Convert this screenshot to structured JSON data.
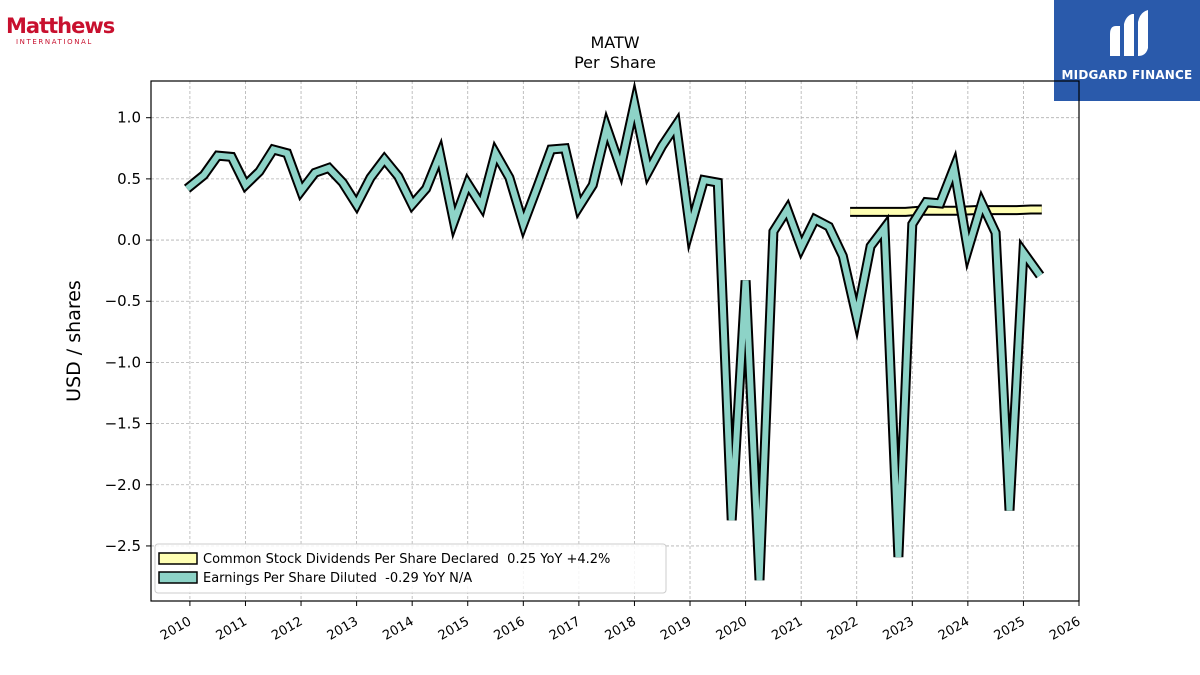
{
  "logos": {
    "left_brand": "Matthews",
    "left_sub": "INTERNATIONAL",
    "right_text": "MIDGARD FINANCE"
  },
  "colors": {
    "brand_red": "#c8102e",
    "brand_blue": "#2a5aab",
    "eps": "#8dd3c7",
    "dividend": "#ffffb3",
    "outline": "#000000",
    "grid": "#b0b0b0"
  },
  "chart_data": {
    "type": "line",
    "title": "MATW",
    "subtitle": "Per  Share",
    "ylabel": "USD / shares",
    "xlabel": "",
    "xlim": [
      2009.3,
      2026.0
    ],
    "ylim": [
      -2.95,
      1.3
    ],
    "grid": true,
    "legend_position": "bottom-left",
    "x_ticks": [
      2010,
      2011,
      2012,
      2013,
      2014,
      2015,
      2016,
      2017,
      2018,
      2019,
      2020,
      2021,
      2022,
      2023,
      2024,
      2025,
      2026
    ],
    "y_ticks": [
      1.0,
      0.5,
      0.0,
      -0.5,
      -1.0,
      -1.5,
      -2.0,
      -2.5
    ],
    "y_tick_labels": [
      "1.0",
      "0.5",
      "0.0",
      "−0.5",
      "−1.0",
      "−1.5",
      "−2.0",
      "−2.5"
    ],
    "series": [
      {
        "name": "Common Stock Dividends Per Share Declared",
        "legend_label": "Common Stock Dividends Per Share Declared  0.25 YoY +4.2%",
        "color": "#ffffb3",
        "x": [
          2021.88,
          2022.13,
          2022.38,
          2022.63,
          2022.88,
          2023.13,
          2023.38,
          2023.63,
          2023.88,
          2024.13,
          2024.38,
          2024.63,
          2024.88,
          2025.13,
          2025.33
        ],
        "y": [
          0.23,
          0.23,
          0.23,
          0.23,
          0.23,
          0.24,
          0.24,
          0.24,
          0.24,
          0.245,
          0.245,
          0.245,
          0.245,
          0.25,
          0.25
        ]
      },
      {
        "name": "Earnings Per Share Diluted",
        "legend_label": "Earnings Per Share Diluted  -0.29 YoY N/A",
        "color": "#8dd3c7",
        "x": [
          2009.95,
          2010.25,
          2010.5,
          2010.75,
          2011.0,
          2011.25,
          2011.5,
          2011.75,
          2012.0,
          2012.25,
          2012.5,
          2012.75,
          2013.0,
          2013.25,
          2013.5,
          2013.75,
          2014.0,
          2014.25,
          2014.5,
          2014.75,
          2015.0,
          2015.25,
          2015.5,
          2015.75,
          2016.0,
          2016.25,
          2016.5,
          2016.75,
          2017.0,
          2017.25,
          2017.5,
          2017.75,
          2018.0,
          2018.25,
          2018.5,
          2018.75,
          2019.0,
          2019.25,
          2019.5,
          2019.75,
          2020.0,
          2020.25,
          2020.5,
          2020.75,
          2021.0,
          2021.25,
          2021.5,
          2021.75,
          2022.0,
          2022.25,
          2022.5,
          2022.75,
          2023.0,
          2023.25,
          2023.5,
          2023.75,
          2024.0,
          2024.25,
          2024.5,
          2024.75,
          2025.0,
          2025.3
        ],
        "y": [
          0.42,
          0.53,
          0.69,
          0.68,
          0.45,
          0.56,
          0.74,
          0.71,
          0.4,
          0.55,
          0.59,
          0.47,
          0.29,
          0.51,
          0.66,
          0.52,
          0.29,
          0.42,
          0.7,
          0.15,
          0.46,
          0.28,
          0.71,
          0.51,
          0.13,
          0.43,
          0.74,
          0.75,
          0.27,
          0.45,
          0.92,
          0.59,
          1.11,
          0.56,
          0.77,
          0.94,
          0.09,
          0.49,
          0.47,
          -2.29,
          -0.33,
          -2.78,
          0.07,
          0.25,
          -0.06,
          0.17,
          0.11,
          -0.13,
          -0.63,
          -0.05,
          0.1,
          -2.59,
          0.13,
          0.31,
          0.3,
          0.59,
          -0.08,
          0.3,
          0.06,
          -2.21,
          -0.1,
          -0.29
        ]
      }
    ]
  }
}
